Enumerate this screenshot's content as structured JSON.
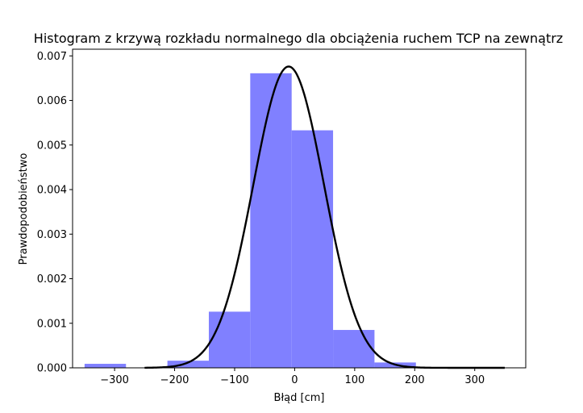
{
  "chart_data": {
    "type": "bar",
    "title": "Histogram z krzywą rozkładu normalnego dla obciążenia ruchem TCP na zewnątrz",
    "xlabel": "Błąd [cm]",
    "ylabel": "Prawdopodobieństwo",
    "xlim": [
      -370,
      385
    ],
    "ylim": [
      0,
      0.00715
    ],
    "x_ticks": [
      -300,
      -200,
      -100,
      0,
      100,
      200,
      300
    ],
    "x_tick_labels": [
      "−300",
      "−200",
      "−100",
      "0",
      "100",
      "200",
      "300"
    ],
    "y_ticks": [
      0,
      0.001,
      0.002,
      0.003,
      0.004,
      0.005,
      0.006,
      0.007
    ],
    "y_tick_labels": [
      "0.000",
      "0.001",
      "0.002",
      "0.003",
      "0.004",
      "0.005",
      "0.006",
      "0.007"
    ],
    "grid": false,
    "histogram": {
      "color": "#8080ff",
      "bin_edges": [
        -350,
        -281,
        -212,
        -143,
        -74,
        -5,
        64,
        133,
        202
      ],
      "values": [
        9e-05,
        0.0,
        0.00016,
        0.00126,
        0.00661,
        0.00533,
        0.00085,
        0.00012
      ]
    },
    "normal_curve": {
      "color": "#000000",
      "mean": -10,
      "std": 59,
      "x_range": [
        -250,
        350
      ]
    }
  }
}
